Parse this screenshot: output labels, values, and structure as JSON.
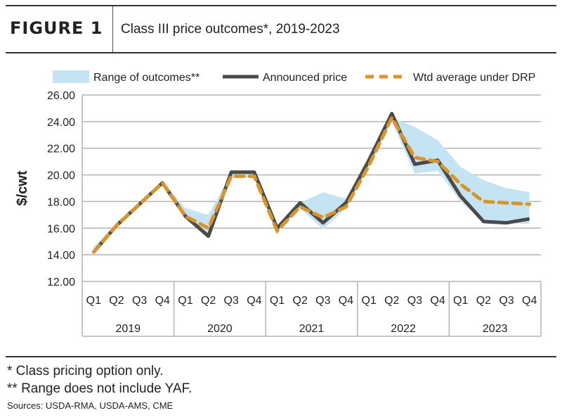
{
  "header": {
    "figure_label": "FIGURE 1",
    "title": "Class III price outcomes*, 2019-2023"
  },
  "chart_data": {
    "type": "line",
    "title": "Class III price outcomes*, 2019-2023",
    "ylabel": "$/cwt",
    "ylim": [
      12,
      26
    ],
    "yticks": [
      "12.00",
      "14.00",
      "16.00",
      "18.00",
      "20.00",
      "22.00",
      "24.00",
      "26.00"
    ],
    "grid": true,
    "legend_position": "top",
    "quarters": [
      "Q1",
      "Q2",
      "Q3",
      "Q4"
    ],
    "years": [
      "2019",
      "2020",
      "2021",
      "2022",
      "2023"
    ],
    "series": [
      {
        "name": "Range of outcomes**",
        "type": "band",
        "color": "#c5e4f3",
        "low": [
          14.0,
          16.1,
          17.7,
          19.3,
          16.8,
          15.2,
          19.8,
          19.8,
          15.7,
          17.5,
          15.9,
          17.5,
          20.5,
          24.0,
          20.1,
          20.3,
          18.0,
          16.5,
          16.4,
          16.3
        ],
        "high": [
          14.6,
          16.3,
          17.9,
          19.5,
          17.5,
          17.0,
          20.1,
          20.1,
          16.1,
          17.9,
          18.7,
          18.2,
          21.0,
          24.3,
          23.6,
          22.6,
          20.6,
          19.6,
          19.0,
          18.7
        ]
      },
      {
        "name": "Announced price",
        "type": "line",
        "color": "#4a4a4a",
        "values": [
          14.2,
          16.2,
          17.8,
          19.4,
          16.9,
          15.4,
          20.2,
          20.2,
          16.0,
          17.9,
          16.4,
          17.9,
          21.1,
          24.6,
          20.8,
          21.1,
          18.4,
          16.5,
          16.4,
          16.7
        ]
      },
      {
        "name": "Wtd average under DRP",
        "type": "dashed",
        "color": "#d9952b",
        "values": [
          14.2,
          16.2,
          17.8,
          19.4,
          16.9,
          16.0,
          19.9,
          19.9,
          15.8,
          17.6,
          16.8,
          17.6,
          20.7,
          24.3,
          21.3,
          21.0,
          19.3,
          18.0,
          17.9,
          17.8
        ]
      }
    ]
  },
  "footer": {
    "note1": "* Class pricing option only.",
    "note2": "** Range does not include YAF.",
    "sources": "Sources: USDA-RMA, USDA-AMS, CME"
  }
}
